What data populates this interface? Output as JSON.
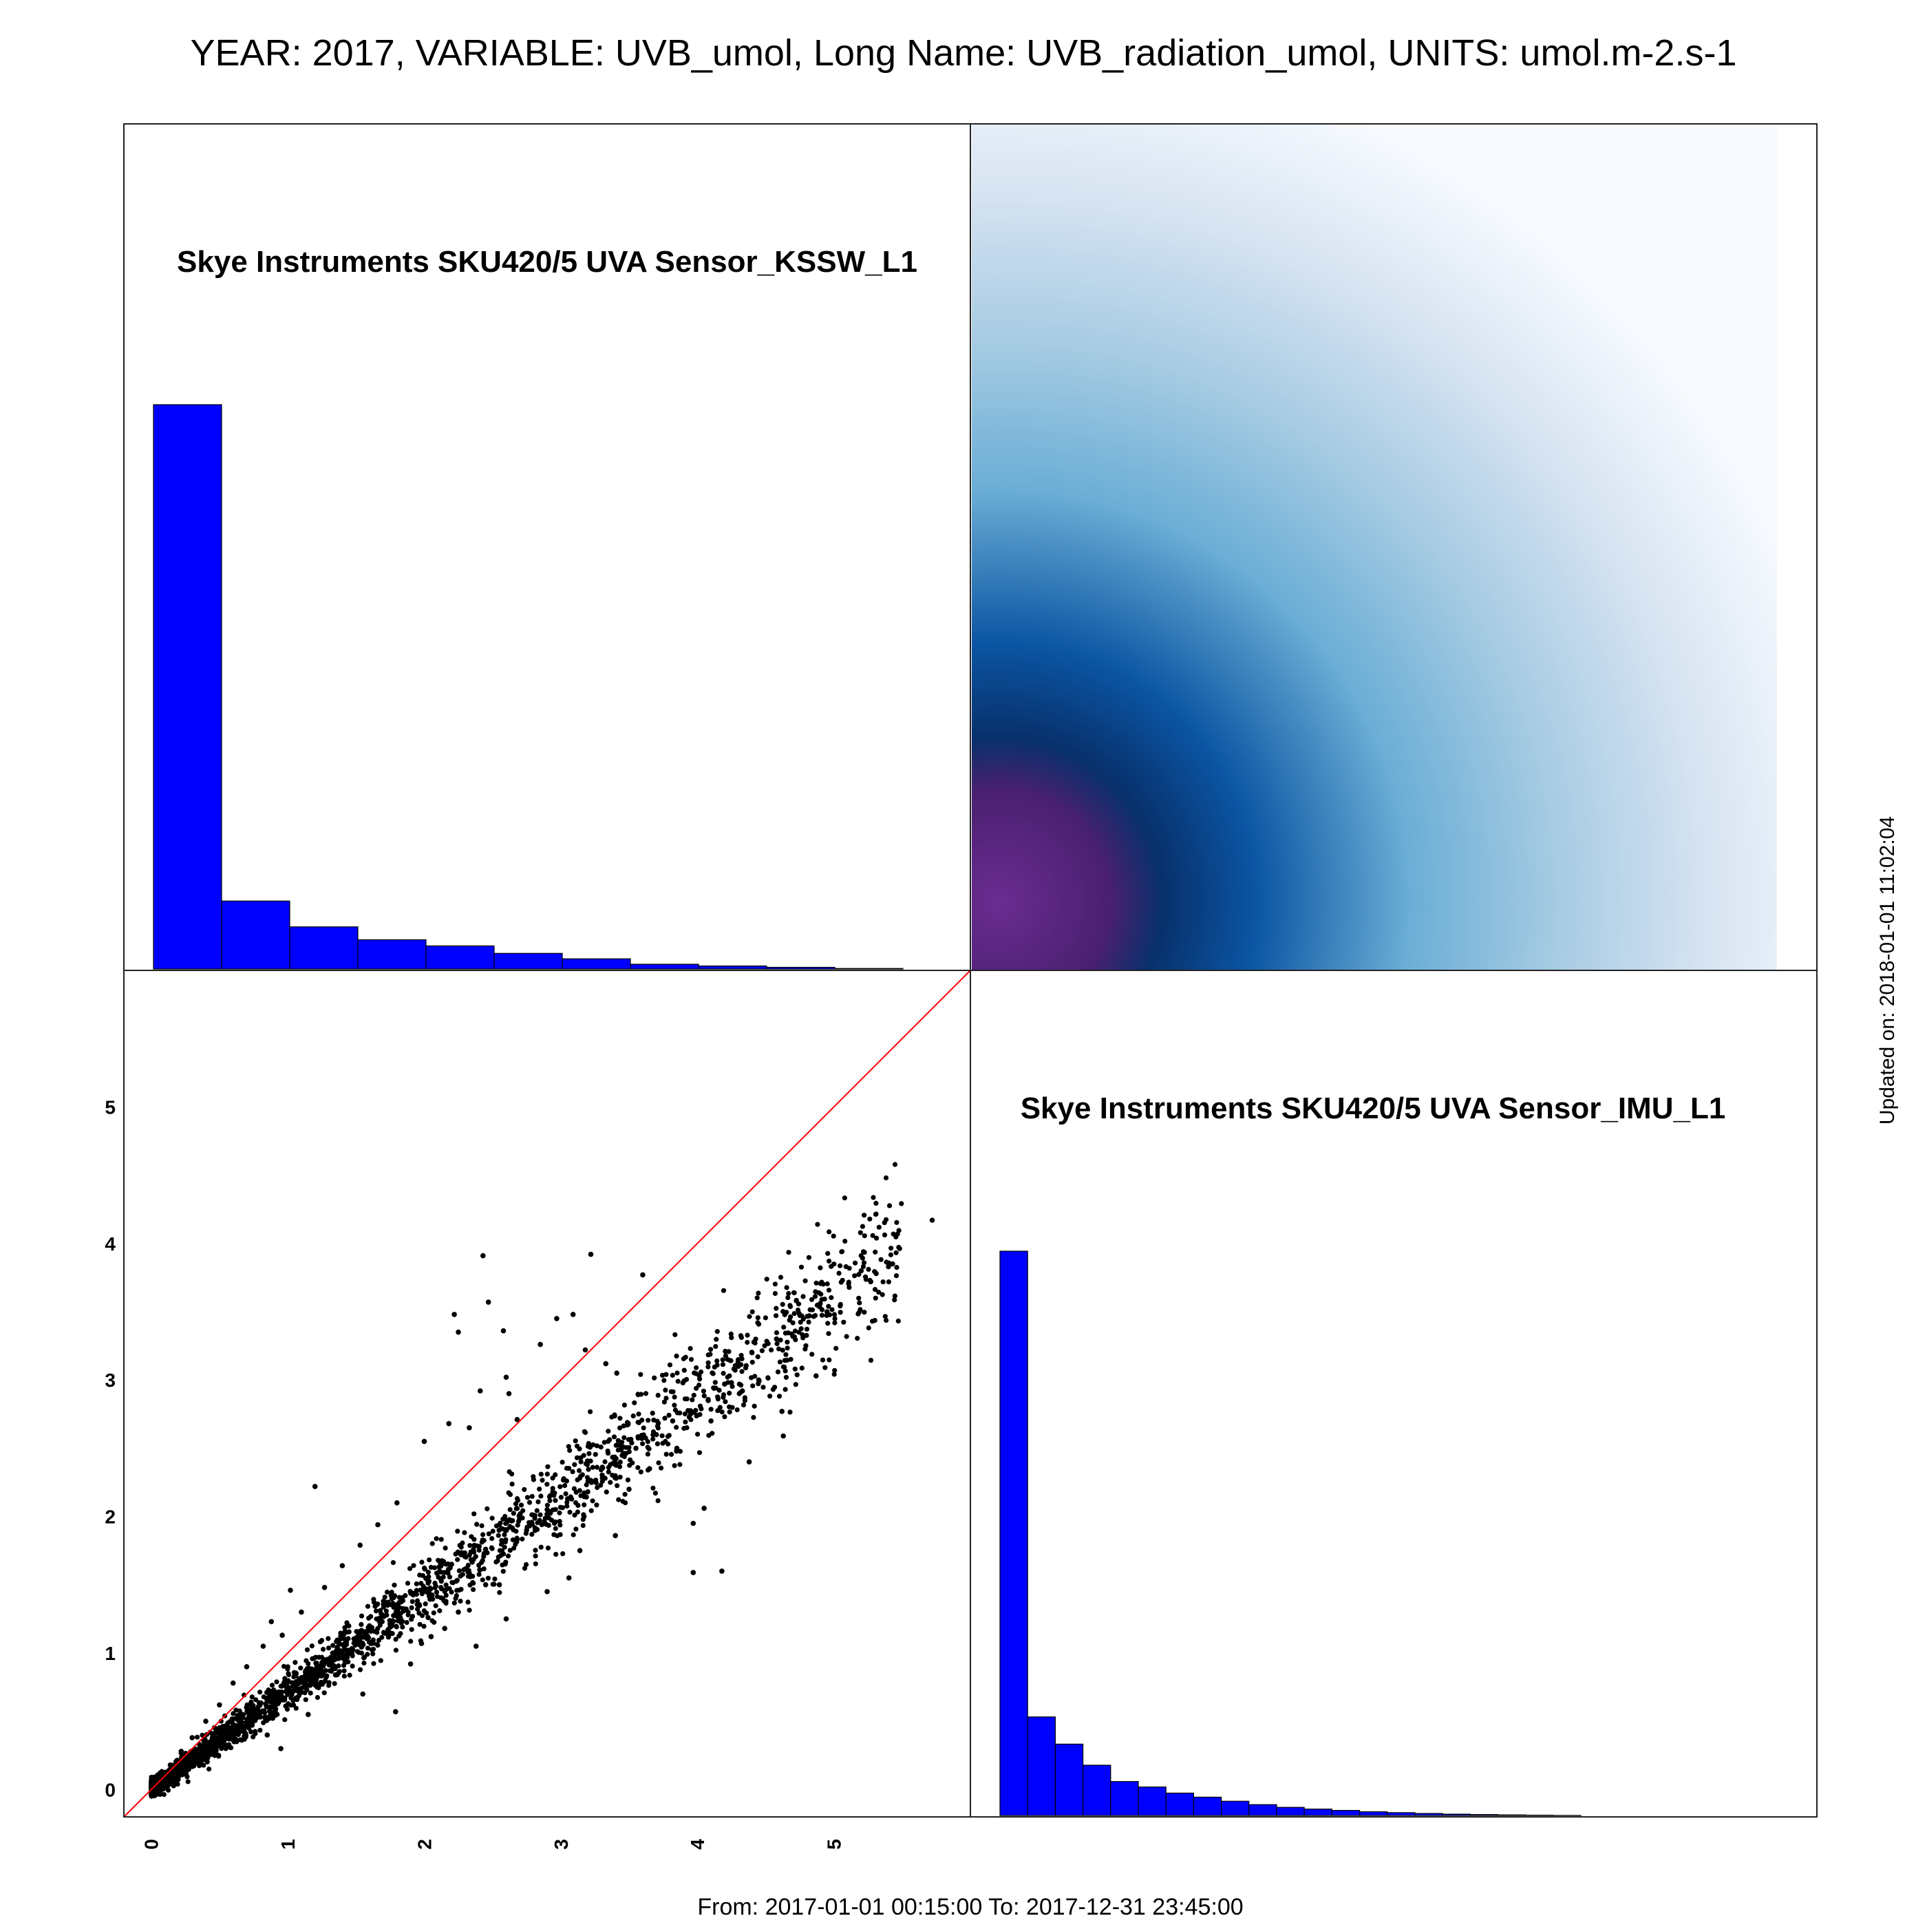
{
  "header": {
    "title": "YEAR: 2017, VARIABLE: UVB_umol, Long Name: UVB_radiation_umol, UNITS: umol.m-2.s-1",
    "updated": "Updated on: 2018-01-01 11:02:04",
    "date_range": "From: 2017-01-01 00:15:00 To: 2017-12-31 23:45:00"
  },
  "colors": {
    "histogram_fill": "#0000ff",
    "histogram_edge": "#000000",
    "reference_line": "#ff0000",
    "points": "#000000",
    "density_low": "#ffffff",
    "density_mid": "#6baed6",
    "density_high": "#08306b",
    "density_peak": "#6a2c91"
  },
  "chart_data": [
    {
      "type": "bar",
      "panel": "top-left",
      "label": "Skye Instruments SKU420/5 UVA Sensor_KSSW_L1",
      "bin_edges": [
        0,
        0.5,
        1,
        1.5,
        2,
        2.5,
        3,
        3.5,
        4,
        4.5,
        5,
        5.5
      ],
      "counts": [
        8300,
        1000,
        620,
        430,
        340,
        230,
        150,
        70,
        45,
        25,
        8
      ]
    },
    {
      "type": "heatmap",
      "panel": "top-right",
      "description_peak": "density peak near (0.25, 0.2)",
      "xlim": [
        -0.2,
        6
      ],
      "ylim": [
        -0.2,
        6
      ]
    },
    {
      "type": "scatter",
      "panel": "bottom-left",
      "xlim": [
        -0.2,
        6
      ],
      "ylim": [
        -0.2,
        6
      ],
      "x_ticks": [
        "0",
        "1",
        "2",
        "3",
        "4",
        "5"
      ],
      "y_ticks": [
        "0",
        "1",
        "2",
        "3",
        "4",
        "5"
      ],
      "reference_line": "y = x",
      "trend_slope": 0.72,
      "points": [
        [
          5.72,
          4.17
        ],
        [
          5.43,
          3.85
        ],
        [
          5.4,
          3.83
        ],
        [
          5.31,
          3.78
        ],
        [
          5.27,
          3.72
        ],
        [
          5.2,
          3.8
        ],
        [
          4.95,
          3.5
        ],
        [
          4.9,
          3.56
        ],
        [
          4.82,
          3.47
        ],
        [
          4.7,
          3.32
        ],
        [
          4.58,
          3.3
        ],
        [
          4.4,
          3.2
        ],
        [
          4.3,
          3.1
        ],
        [
          4.33,
          2.92
        ],
        [
          4.2,
          2.97
        ],
        [
          4.08,
          2.85
        ],
        [
          3.95,
          2.75
        ],
        [
          3.82,
          2.7
        ],
        [
          3.7,
          2.6
        ],
        [
          3.55,
          2.5
        ],
        [
          3.4,
          2.38
        ],
        [
          3.2,
          2.26
        ],
        [
          3.05,
          2.13
        ],
        [
          2.9,
          2.05
        ],
        [
          4.87,
          3.03
        ],
        [
          4.62,
          2.77
        ],
        [
          4.63,
          2.59
        ],
        [
          4.38,
          2.4
        ],
        [
          4.05,
          2.06
        ],
        [
          3.97,
          1.95
        ],
        [
          3.97,
          1.59
        ],
        [
          4.18,
          1.6
        ],
        [
          3.4,
          1.86
        ],
        [
          3.14,
          1.75
        ],
        [
          3.06,
          1.55
        ],
        [
          2.75,
          1.9
        ],
        [
          2.45,
          1.76
        ],
        [
          2.55,
          1.5
        ],
        [
          2.2,
          1.65
        ],
        [
          1.2,
          2.22
        ],
        [
          2.0,
          2.55
        ],
        [
          2.6,
          3.02
        ],
        [
          2.43,
          3.91
        ],
        [
          3.22,
          3.92
        ],
        [
          3.6,
          3.77
        ],
        [
          2.22,
          3.48
        ],
        [
          2.25,
          3.35
        ],
        [
          2.47,
          3.57
        ],
        [
          2.58,
          3.36
        ],
        [
          2.97,
          3.45
        ],
        [
          3.09,
          3.48
        ],
        [
          2.85,
          3.26
        ],
        [
          3.18,
          3.22
        ],
        [
          3.33,
          3.12
        ],
        [
          2.41,
          2.92
        ],
        [
          2.62,
          2.9
        ],
        [
          2.18,
          2.68
        ],
        [
          2.33,
          2.65
        ],
        [
          2.68,
          2.71
        ],
        [
          3.41,
          3.05
        ],
        [
          1.8,
          2.1
        ],
        [
          1.66,
          1.94
        ],
        [
          1.53,
          1.79
        ],
        [
          1.4,
          1.64
        ],
        [
          1.27,
          1.48
        ],
        [
          1.1,
          1.3
        ],
        [
          0.96,
          1.13
        ],
        [
          0.88,
          1.23
        ],
        [
          1.02,
          1.46
        ],
        [
          0.82,
          1.05
        ],
        [
          0.7,
          0.9
        ],
        [
          0.6,
          0.78
        ],
        [
          0.5,
          0.62
        ],
        [
          0.4,
          0.5
        ],
        [
          0.3,
          0.38
        ],
        [
          0.22,
          0.28
        ],
        [
          0.14,
          0.18
        ],
        [
          0.08,
          0.1
        ],
        [
          0.05,
          0.06
        ],
        [
          0.03,
          0.04
        ],
        [
          1.79,
          0.57
        ],
        [
          1.55,
          0.7
        ],
        [
          1.35,
          0.84
        ],
        [
          1.15,
          0.55
        ],
        [
          0.95,
          0.3
        ],
        [
          0.85,
          0.4
        ],
        [
          2.05,
          1.12
        ],
        [
          2.25,
          1.3
        ],
        [
          2.38,
          1.05
        ],
        [
          2.45,
          1.5
        ],
        [
          1.98,
          1.07
        ],
        [
          1.9,
          0.92
        ],
        [
          2.15,
          1.18
        ],
        [
          2.6,
          1.25
        ],
        [
          2.9,
          1.45
        ],
        [
          3.17,
          2.0
        ],
        [
          3.5,
          2.2
        ],
        [
          3.65,
          2.35
        ],
        [
          3.85,
          2.5
        ],
        [
          4.1,
          2.7
        ],
        [
          4.45,
          3.0
        ],
        [
          4.25,
          2.98
        ]
      ]
    },
    {
      "type": "bar",
      "panel": "bottom-right",
      "label": "Skye Instruments SKU420/5 UVA Sensor_IMU_L1",
      "bin_edges": [
        0,
        0.2,
        0.4,
        0.6,
        0.8,
        1.0,
        1.2,
        1.4,
        1.6,
        1.8,
        2.0,
        2.2,
        2.4,
        2.6,
        2.8,
        3.0,
        3.2,
        3.4,
        3.6,
        3.8,
        4.0,
        4.2
      ],
      "counts": [
        8300,
        1450,
        1050,
        740,
        500,
        420,
        330,
        270,
        210,
        160,
        120,
        95,
        75,
        55,
        42,
        30,
        20,
        14,
        9,
        5,
        2
      ]
    }
  ]
}
